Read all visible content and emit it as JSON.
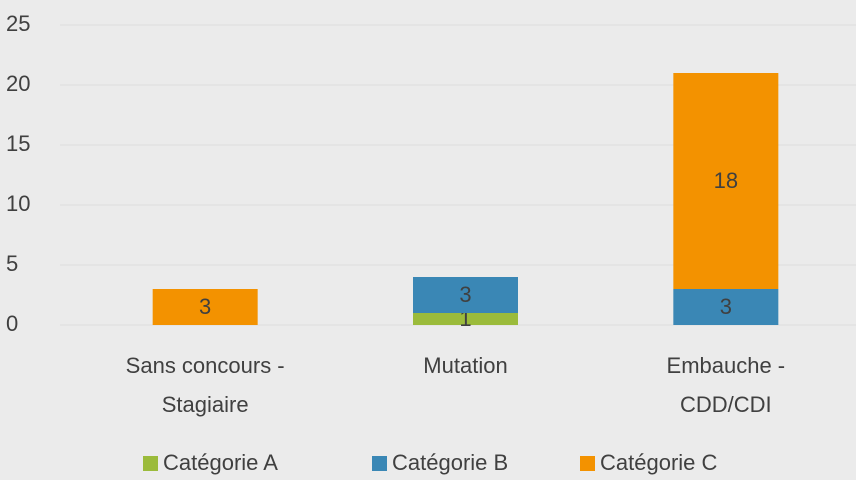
{
  "chart_data": {
    "type": "stacked_bar",
    "categories": [
      [
        "Sans concours -",
        "Stagiaire"
      ],
      [
        "Mutation"
      ],
      [
        "Embauche -",
        "CDD/CDI"
      ]
    ],
    "series": [
      {
        "name": "Catégorie A",
        "color": "#9bbb3b",
        "values": [
          0,
          1,
          0
        ]
      },
      {
        "name": "Catégorie B",
        "color": "#3a87b5",
        "values": [
          0,
          3,
          3
        ]
      },
      {
        "name": "Catégorie C",
        "color": "#f39200",
        "values": [
          3,
          0,
          18
        ]
      }
    ],
    "ylim": [
      0,
      25
    ],
    "yticks": [
      0,
      5,
      10,
      15,
      20,
      25
    ],
    "grid": true,
    "legend": "bottom"
  }
}
